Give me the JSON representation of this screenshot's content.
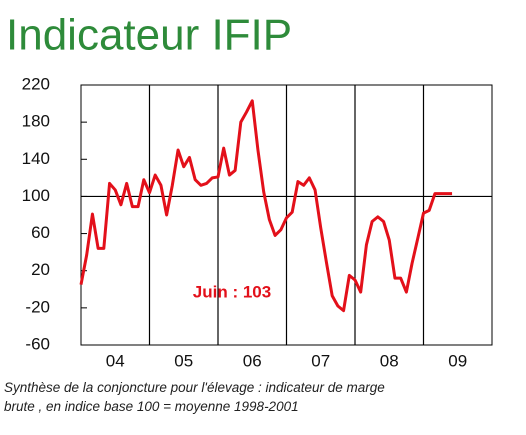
{
  "chart_data": {
    "type": "line",
    "title": "Indicateur IFIP",
    "annotation": "Juin : 103",
    "caption": [
      "Synthèse de la conjoncture pour l'élevage : indicateur de marge",
      "brute , en indice base 100 = moyenne 1998-2001"
    ],
    "x": [
      2004,
      2004.083,
      2004.167,
      2004.25,
      2004.333,
      2004.417,
      2004.5,
      2004.583,
      2004.667,
      2004.75,
      2004.833,
      2004.917,
      2005,
      2005.083,
      2005.167,
      2005.25,
      2005.333,
      2005.417,
      2005.5,
      2005.583,
      2005.667,
      2005.75,
      2005.833,
      2005.917,
      2006,
      2006.083,
      2006.167,
      2006.25,
      2006.333,
      2006.417,
      2006.5,
      2006.583,
      2006.667,
      2006.75,
      2006.833,
      2006.917,
      2007,
      2007.083,
      2007.167,
      2007.25,
      2007.333,
      2007.417,
      2007.5,
      2007.583,
      2007.667,
      2007.75,
      2007.833,
      2007.917,
      2008,
      2008.083,
      2008.167,
      2008.25,
      2008.333,
      2008.417,
      2008.5,
      2008.583,
      2008.667,
      2008.75,
      2008.833,
      2008.917,
      2009,
      2009.083,
      2009.167,
      2009.25,
      2009.333,
      2009.417
    ],
    "series": [
      {
        "color": "#e3101a",
        "values": [
          5,
          37,
          81,
          44,
          44,
          114,
          107,
          91,
          114,
          89,
          89,
          118,
          104,
          123,
          112,
          80,
          112,
          150,
          132,
          142,
          118,
          112,
          114,
          120,
          121,
          152,
          123,
          128,
          180,
          191,
          203,
          150,
          105,
          75,
          58,
          64,
          77,
          83,
          116,
          112,
          120,
          107,
          66,
          29,
          -7,
          -18,
          -23,
          15,
          10,
          -3,
          48,
          73,
          78,
          73,
          53,
          12,
          12,
          -3,
          28,
          55,
          82,
          85,
          103,
          103,
          103,
          103
        ]
      }
    ],
    "xlim": [
      2004,
      2010
    ],
    "xticks": [
      {
        "value": 2004.5,
        "label": "04"
      },
      {
        "value": 2005.5,
        "label": "05"
      },
      {
        "value": 2006.5,
        "label": "06"
      },
      {
        "value": 2007.5,
        "label": "07"
      },
      {
        "value": 2008.5,
        "label": "08"
      },
      {
        "value": 2009.5,
        "label": "09"
      }
    ],
    "ylim": [
      -60,
      220
    ],
    "yticks": [
      -60,
      -20,
      20,
      60,
      100,
      140,
      180,
      220
    ],
    "reference_line": 100
  }
}
